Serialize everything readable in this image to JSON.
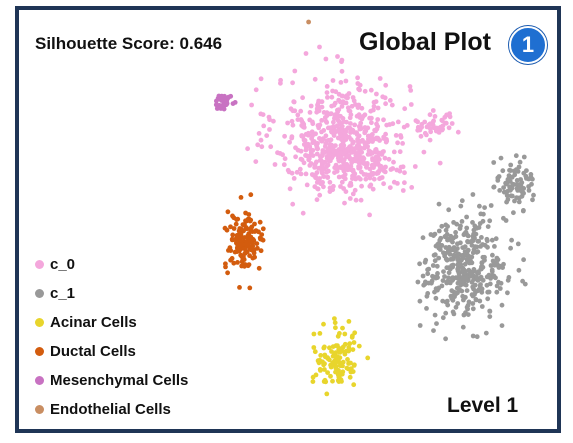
{
  "chart_data": {
    "type": "scatter",
    "title": "Global Plot",
    "subtitle": "Silhouette Score: 0.646",
    "annotation": "Level 1",
    "badge": "1",
    "xlabel": "",
    "ylabel": "",
    "xlim": [
      0,
      100
    ],
    "ylim": [
      0,
      100
    ],
    "grid": false,
    "legend_position": "bottom-left",
    "series": [
      {
        "name": "c_0",
        "color": "#f4a7dc",
        "clusters": [
          {
            "cx": 60.5,
            "cy": 71,
            "sx": 6.5,
            "sy": 7.5,
            "n": 520
          },
          {
            "cx": 62,
            "cy": 64,
            "sx": 5,
            "sy": 3,
            "n": 140
          },
          {
            "cx": 78.5,
            "cy": 74,
            "sx": 2,
            "sy": 1.6,
            "n": 45
          }
        ]
      },
      {
        "name": "c_1",
        "color": "#999999",
        "clusters": [
          {
            "cx": 84.5,
            "cy": 38,
            "sx": 4,
            "sy": 6.5,
            "n": 380
          },
          {
            "cx": 94,
            "cy": 59,
            "sx": 1.8,
            "sy": 3.2,
            "n": 85
          }
        ]
      },
      {
        "name": "Acinar Cells",
        "color": "#e8d52c",
        "clusters": [
          {
            "cx": 59.5,
            "cy": 15,
            "sx": 2.3,
            "sy": 3.8,
            "n": 115
          }
        ]
      },
      {
        "name": "Ductal Cells",
        "color": "#d35c0e",
        "clusters": [
          {
            "cx": 41.5,
            "cy": 44,
            "sx": 1.9,
            "sy": 3.7,
            "n": 135
          }
        ]
      },
      {
        "name": "Mesenchymal Cells",
        "color": "#c872c2",
        "clusters": [
          {
            "cx": 37.5,
            "cy": 80,
            "sx": 0.9,
            "sy": 0.9,
            "n": 34
          }
        ]
      },
      {
        "name": "Endothelial Cells",
        "color": "#c98e62",
        "clusters": [
          {
            "cx": 54,
            "cy": 100,
            "sx": 0.1,
            "sy": 0.1,
            "n": 1
          }
        ]
      }
    ]
  }
}
